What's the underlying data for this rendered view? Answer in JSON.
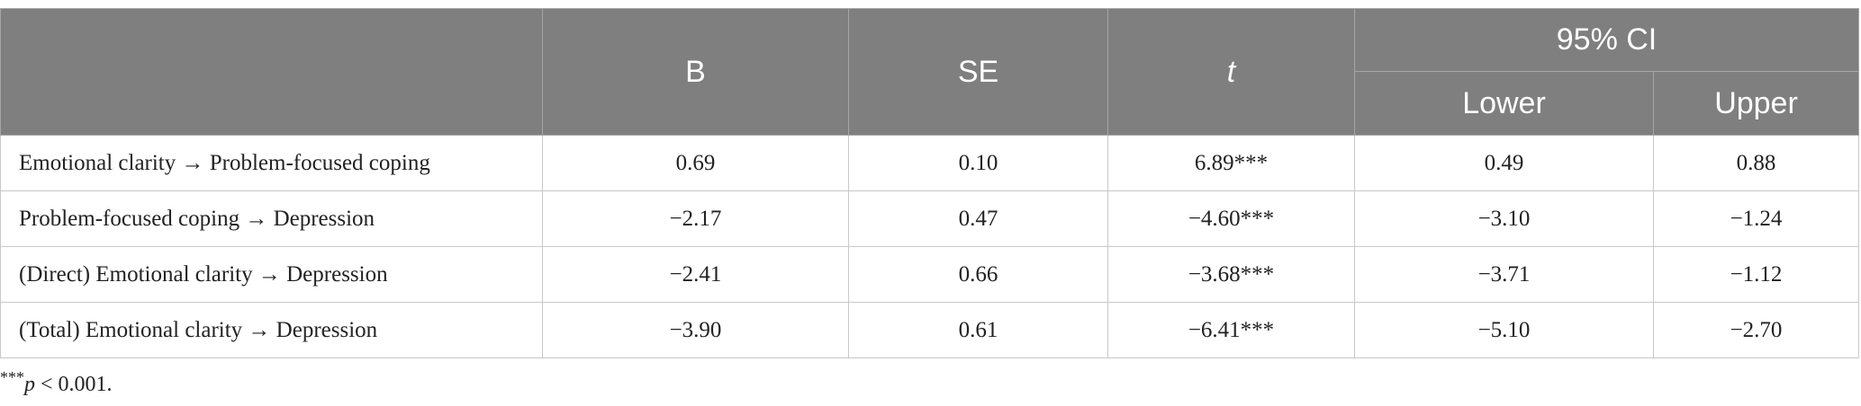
{
  "table": {
    "header": {
      "blank": "",
      "columns": [
        "B",
        "SE",
        "t"
      ],
      "group": "95% CI",
      "subcolumns": [
        "Lower",
        "Upper"
      ]
    },
    "rows": [
      [
        "Emotional clarity → Problem-focused coping",
        "0.69",
        "0.10",
        "6.89***",
        "0.49",
        "0.88"
      ],
      [
        "Problem-focused coping → Depression",
        "−2.17",
        "0.47",
        "−4.60***",
        "−3.10",
        "−1.24"
      ],
      [
        "(Direct) Emotional clarity → Depression",
        "−2.41",
        "0.66",
        "−3.68***",
        "−3.71",
        "−1.12"
      ],
      [
        "(Total) Emotional clarity → Depression",
        "−3.90",
        "0.61",
        "−6.41***",
        "−5.10",
        "−2.70"
      ]
    ]
  },
  "footnote": {
    "stars": "***",
    "p": "p",
    "rest": " < 0.001."
  }
}
